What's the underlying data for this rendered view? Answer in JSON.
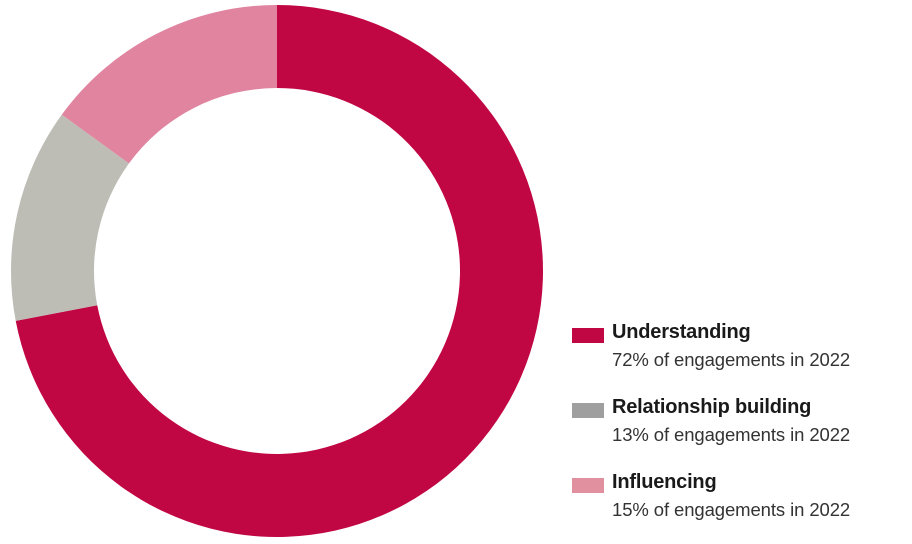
{
  "chart_data": {
    "type": "pie",
    "subtype": "donut",
    "title": "",
    "legend_position": "right",
    "series": [
      {
        "name": "Understanding",
        "value": 72,
        "unit": "%",
        "description": "72% of engagements in 2022",
        "color": "#c10644"
      },
      {
        "name": "Relationship building",
        "value": 13,
        "unit": "%",
        "description": "13% of engagements in 2022",
        "color": "#bdbdb5"
      },
      {
        "name": "Influencing",
        "value": 15,
        "unit": "%",
        "description": "15% of engagements in 2022",
        "color": "#e0849f"
      }
    ],
    "legend_swatch_colors": [
      "#c10644",
      "#9f9f9f",
      "#e0909f"
    ]
  }
}
